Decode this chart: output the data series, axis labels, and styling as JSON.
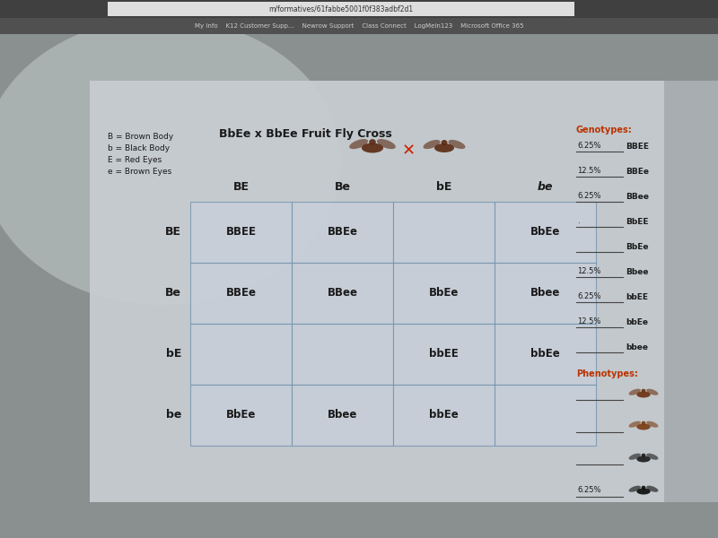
{
  "title": "BbEe x BbEe Fruit Fly Cross",
  "legend": [
    "B = Brown Body",
    "b = Black Body",
    "E = Red Eyes",
    "e = Brown Eyes"
  ],
  "col_headers": [
    "BE",
    "Be",
    "bE",
    "be"
  ],
  "row_headers": [
    "BE",
    "Be",
    "bE",
    "be"
  ],
  "cells": [
    [
      "BBEE",
      "BBEe",
      "",
      "BbEe"
    ],
    [
      "BBEe",
      "BBee",
      "BbEe",
      "Bbee"
    ],
    [
      "",
      "",
      "bbEE",
      "bbEe"
    ],
    [
      "BbEe",
      "Bbee",
      "bbEe",
      ""
    ]
  ],
  "url_bar": "m/formatives/61fabbe5001f0f383adbf2d1",
  "bookmarks": "My Info    K12 Customer Supp...    Newrow Support    Class Connect    LogMeIn123    Microsoft Office 365",
  "genotypes_label": "Genotypes:",
  "genotypes": [
    [
      "6.25%",
      "BBEE"
    ],
    [
      "12.5%",
      "BBEe"
    ],
    [
      "6.25%",
      "BBee"
    ],
    [
      ".",
      "BbEE"
    ],
    [
      "",
      "BbEe"
    ],
    [
      "12.5%",
      "Bbee"
    ],
    [
      "6.25%",
      "bbEE"
    ],
    [
      "12.5%",
      "bbEe"
    ],
    [
      "",
      "bbee"
    ]
  ],
  "phenotypes_label": "Phenotypes:",
  "phenotype_pct": [
    "",
    "",
    "",
    "6.25%"
  ],
  "bg_screen": "#b0b8c0",
  "bg_webpage": "#d8dde2",
  "browser_chrome": "#3c3c3c",
  "browser_bar": "#555555",
  "cell_bg": "#c8d0dc",
  "grid_color": "#7090aa",
  "text_dark": "#1a1a1a",
  "text_medium": "#2a2a2a",
  "title_color": "#1a1a1a",
  "genotype_label_color": "#bb3300",
  "phenotype_label_color": "#bb3300",
  "line_color": "#555555"
}
